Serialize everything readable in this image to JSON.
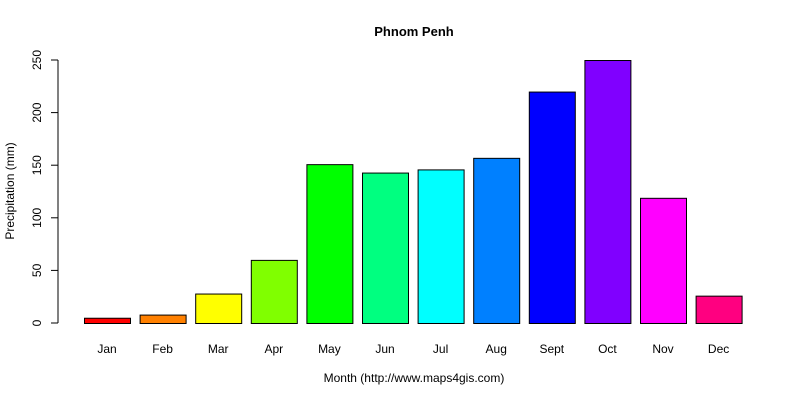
{
  "chart_data": {
    "type": "bar",
    "title": "Phnom Penh",
    "xlabel": "Month (http://www.maps4gis.com)",
    "ylabel": "Precipitation (mm)",
    "ylim": [
      0,
      250
    ],
    "yticks": [
      "0",
      "50",
      "100",
      "150",
      "200",
      "250"
    ],
    "categories": [
      "Jan",
      "Feb",
      "Mar",
      "Apr",
      "May",
      "Jun",
      "Jul",
      "Aug",
      "Sept",
      "Oct",
      "Nov",
      "Dec"
    ],
    "values": [
      5,
      8,
      28,
      60,
      151,
      143,
      146,
      157,
      220,
      250,
      119,
      26
    ],
    "colors": [
      "#FF0000",
      "#FF8000",
      "#FFFF00",
      "#80FF00",
      "#00FF00",
      "#00FF80",
      "#00FFFF",
      "#0080FF",
      "#0000FF",
      "#8000FF",
      "#FF00FF",
      "#FF0080"
    ],
    "grid": false,
    "legend": "none"
  }
}
